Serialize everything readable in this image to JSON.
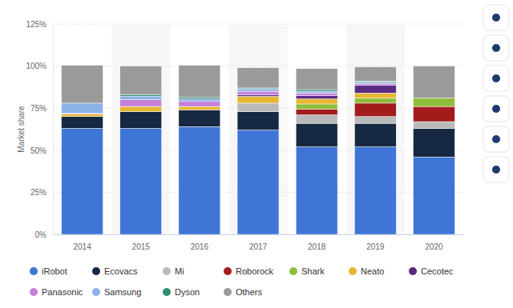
{
  "chart_data": {
    "type": "bar",
    "stacked": true,
    "grid": true,
    "legend": "bottom",
    "ylabel": "Market share",
    "categories": [
      "2014",
      "2015",
      "2016",
      "2017",
      "2018",
      "2019",
      "2020"
    ],
    "ylim": [
      0,
      125
    ],
    "yticks": [
      {
        "value": 0,
        "label": "0%"
      },
      {
        "value": 25,
        "label": "25%"
      },
      {
        "value": 50,
        "label": "50%"
      },
      {
        "value": 75,
        "label": "75%"
      },
      {
        "value": 100,
        "label": "100%"
      },
      {
        "value": 125,
        "label": "125%"
      }
    ],
    "series": [
      {
        "name": "iRobot",
        "color": "#3f75d6",
        "values": [
          63,
          63,
          64,
          62,
          52,
          52,
          46
        ]
      },
      {
        "name": "Ecovacs",
        "color": "#172842",
        "values": [
          7,
          10,
          10,
          11,
          14,
          14,
          17
        ]
      },
      {
        "name": "Mi",
        "color": "#b9b9b9",
        "values": [
          0,
          0,
          0,
          5,
          5,
          4,
          4
        ]
      },
      {
        "name": "Roborock",
        "color": "#a31c1c",
        "values": [
          0,
          0,
          0,
          0,
          3.5,
          8,
          9
        ]
      },
      {
        "name": "Shark",
        "color": "#8fbe3c",
        "values": [
          0,
          0,
          0,
          0,
          3,
          3,
          5
        ]
      },
      {
        "name": "Neato",
        "color": "#e7b731",
        "values": [
          1.5,
          3,
          2,
          4,
          3,
          3,
          0
        ]
      },
      {
        "name": "Cecotec",
        "color": "#5a2a82",
        "values": [
          0,
          0,
          0,
          1,
          2,
          4.5,
          0
        ]
      },
      {
        "name": "Panasonic",
        "color": "#c581d8",
        "values": [
          0.5,
          4,
          3,
          2,
          1.5,
          1,
          0
        ]
      },
      {
        "name": "Samsung",
        "color": "#8db2ea",
        "values": [
          6,
          2,
          1.5,
          1.5,
          1,
          1,
          0
        ]
      },
      {
        "name": "Dyson",
        "color": "#2e8f70",
        "values": [
          0,
          1,
          1,
          0.5,
          1,
          0.5,
          0
        ]
      },
      {
        "name": "Others",
        "color": "#9a9a9a",
        "values": [
          22.5,
          17,
          19,
          12,
          12.5,
          8.5,
          19
        ]
      }
    ]
  }
}
